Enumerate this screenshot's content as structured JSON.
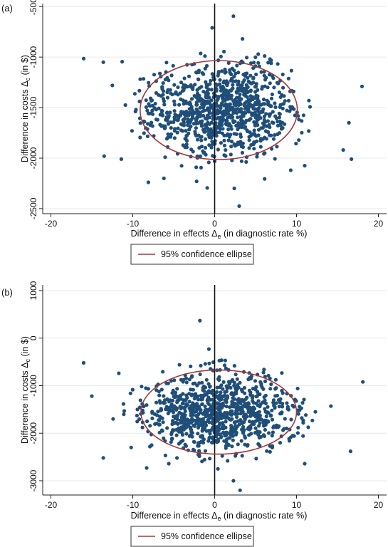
{
  "chart_data": [
    {
      "panel_label": "(a)",
      "type": "scatter",
      "xlabel_main": "Difference in effects Δ",
      "xlabel_sub": "e",
      "xlabel_tail": " (in diagnostic rate %)",
      "ylabel_main": "Difference in costs Δ",
      "ylabel_sub": "c",
      "ylabel_tail": " (in $)",
      "xlim": [
        -21,
        21
      ],
      "ylim": [
        -2550,
        -470
      ],
      "xticks": [
        -20,
        -10,
        0,
        10,
        20
      ],
      "yticks": [
        -2500,
        -2000,
        -1500,
        -1000,
        -500
      ],
      "vline_x": 0,
      "grid": "horizontal",
      "point_color": "#1f4e79",
      "ellipse_color": "#a23a3a",
      "ellipse": {
        "cx": 0.5,
        "cy": -1525,
        "rx": 9.6,
        "ry": 490
      },
      "legend": {
        "label": "95% confidence ellipse",
        "placement": "bottom-center"
      },
      "cloud": {
        "count": 950,
        "x_mean": 0.5,
        "x_sd": 4.8,
        "y_mean": -1525,
        "y_sd": 230,
        "seed": 17
      },
      "points": [
        [
          -16.0,
          -1015
        ],
        [
          2.3,
          -595
        ],
        [
          -0.3,
          -710
        ],
        [
          3.4,
          -820
        ],
        [
          -13.6,
          -1050
        ],
        [
          -11.3,
          -1045
        ],
        [
          -12.5,
          -1280
        ],
        [
          -10.9,
          -1475
        ],
        [
          -13.5,
          -1980
        ],
        [
          -11.4,
          -2010
        ],
        [
          18.0,
          -1290
        ],
        [
          16.4,
          -1650
        ],
        [
          15.7,
          -1920
        ],
        [
          16.7,
          -2010
        ],
        [
          -8.1,
          -2240
        ],
        [
          -6.2,
          -2200
        ],
        [
          -0.9,
          -2295
        ],
        [
          2.4,
          -2300
        ],
        [
          3.0,
          -2475
        ],
        [
          9.3,
          -2120
        ],
        [
          11.0,
          -2075
        ],
        [
          -2.2,
          -2230
        ],
        [
          6.1,
          -2205
        ]
      ]
    },
    {
      "panel_label": "(b)",
      "type": "scatter",
      "xlabel_main": "Difference in effects Δ",
      "xlabel_sub": "e",
      "xlabel_tail": " (in diagnostic rate %)",
      "ylabel_main": "Difference in costs Δ",
      "ylabel_sub": "c",
      "ylabel_tail": " (in $)",
      "xlim": [
        -21,
        21
      ],
      "ylim": [
        -3300,
        1120
      ],
      "xticks": [
        -20,
        -10,
        0,
        10,
        20
      ],
      "yticks": [
        -3000,
        -2000,
        -1000,
        0,
        1000
      ],
      "vline_x": 0,
      "grid": "horizontal",
      "point_color": "#1f4e79",
      "ellipse_color": "#a23a3a",
      "ellipse": {
        "cx": 0.5,
        "cy": -1555,
        "rx": 9.5,
        "ry": 885
      },
      "legend": {
        "label": "95% confidence ellipse",
        "placement": "bottom-center"
      },
      "cloud": {
        "count": 950,
        "x_mean": 0.5,
        "x_sd": 4.8,
        "y_mean": -1555,
        "y_sd": 430,
        "seed": 29
      },
      "points": [
        [
          -16.0,
          -520
        ],
        [
          -1.8,
          370
        ],
        [
          -0.7,
          -230
        ],
        [
          1.3,
          -470
        ],
        [
          -11.7,
          -740
        ],
        [
          -15.0,
          -1220
        ],
        [
          -13.6,
          -2520
        ],
        [
          18.1,
          -920
        ],
        [
          16.6,
          -2380
        ],
        [
          2.3,
          -3000
        ],
        [
          3.1,
          -3200
        ],
        [
          -8.3,
          -2730
        ],
        [
          -5.6,
          -2640
        ],
        [
          0.4,
          -2750
        ],
        [
          11.0,
          -2640
        ],
        [
          -12.4,
          -1700
        ],
        [
          14.2,
          -1430
        ],
        [
          -10.2,
          -2300
        ]
      ]
    }
  ]
}
